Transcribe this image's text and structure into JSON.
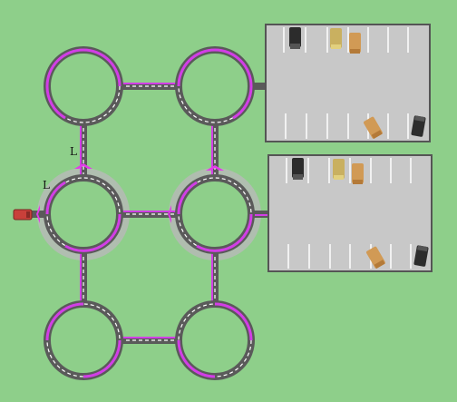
{
  "game": {
    "labels": [
      "L",
      "L"
    ],
    "colors": {
      "grass": "#8ecf8a",
      "road": "#5a5a5a",
      "lane_dash": "#ffffff",
      "route": "#d23ee6",
      "ghost_track": "#b9b9b9",
      "lot_fill": "#c8c8c8",
      "lot_border": "#555555",
      "player_car": "#c9403a"
    },
    "lots": [
      {
        "name": "parking-lot-top",
        "cars": [
          {
            "color": "#2c2c2c",
            "icon": "black-car"
          },
          {
            "color": "#c9b060",
            "icon": "tan-car"
          },
          {
            "color": "#d19a55",
            "icon": "orange-car"
          },
          {
            "color": "#d19a55",
            "icon": "orange-car-angled"
          },
          {
            "color": "#2c2c2c",
            "icon": "black-car-angled"
          }
        ]
      },
      {
        "name": "parking-lot-bottom",
        "cars": [
          {
            "color": "#2c2c2c",
            "icon": "black-car"
          },
          {
            "color": "#c9b060",
            "icon": "tan-car"
          },
          {
            "color": "#d19a55",
            "icon": "orange-car"
          },
          {
            "color": "#d19a55",
            "icon": "orange-car-angled"
          },
          {
            "color": "#2c2c2c",
            "icon": "black-car-angled"
          }
        ]
      }
    ]
  }
}
